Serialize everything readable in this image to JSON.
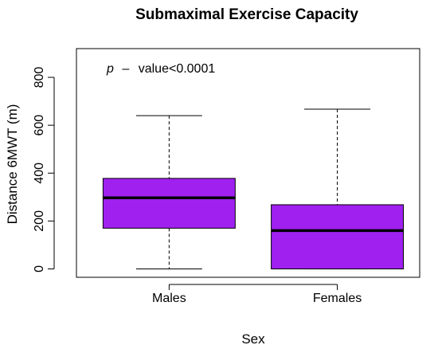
{
  "chart_data": {
    "type": "boxplot",
    "title": "Submaximal Exercise Capacity",
    "xlabel": "Sex",
    "ylabel": "Distance 6MWT (m)",
    "ylim": [
      -35,
      920
    ],
    "yticks": [
      0,
      200,
      400,
      600,
      800
    ],
    "grid": false,
    "box_color": "#a020f0",
    "categories": [
      "Males",
      "Females"
    ],
    "boxes": [
      {
        "category": "Males",
        "min": 0,
        "q1": 170,
        "median": 297,
        "q3": 378,
        "max": 640
      },
      {
        "category": "Females",
        "min": 0,
        "q1": 0,
        "median": 160,
        "q3": 268,
        "max": 667
      }
    ],
    "annotation": {
      "p_symbol": "p",
      "dash": "–",
      "text": "value<0.0001"
    }
  }
}
